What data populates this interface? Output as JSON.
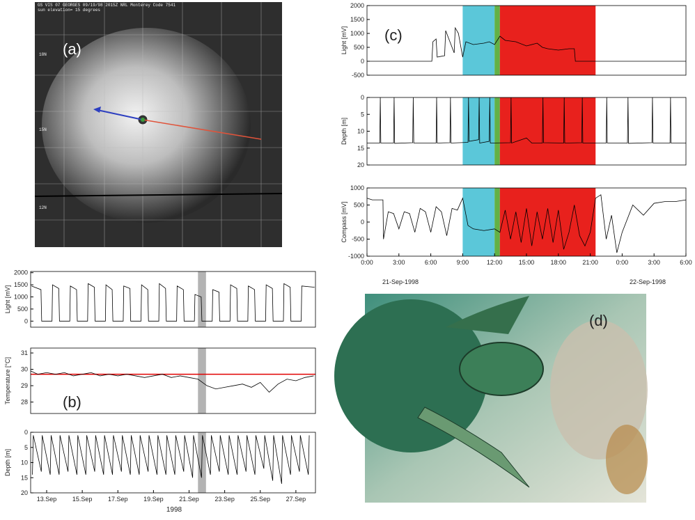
{
  "chart_data": [
    {
      "type": "line",
      "ylabel": "Light [mV]",
      "xlim": [
        12.1,
        28.1
      ],
      "ylim": [
        -250,
        2050
      ],
      "yticks": [
        0,
        500,
        1000,
        1500,
        2000
      ],
      "spans": [
        {
          "x": [
            21.5,
            21.95
          ],
          "color": "#b3b3b3"
        }
      ],
      "x": [
        12.15,
        12.68,
        12.72,
        13.3,
        13.33,
        13.68,
        13.72,
        14.3,
        14.33,
        14.68,
        14.72,
        15.3,
        15.33,
        15.68,
        15.72,
        16.3,
        16.33,
        16.68,
        16.72,
        17.3,
        17.33,
        17.68,
        17.72,
        18.3,
        18.33,
        18.68,
        18.72,
        19.3,
        19.33,
        19.68,
        19.72,
        20.3,
        20.33,
        20.68,
        20.72,
        21.3,
        21.33,
        21.68,
        21.72,
        22.3,
        22.33,
        22.68,
        22.72,
        23.3,
        23.33,
        23.68,
        23.72,
        24.3,
        24.33,
        24.68,
        24.72,
        25.3,
        25.33,
        25.68,
        25.72,
        26.3,
        26.33,
        26.68,
        26.72,
        27.3,
        27.33,
        28.05
      ],
      "series": [
        {
          "color": "#000000",
          "values": [
            1450,
            1300,
            0,
            0,
            1500,
            1350,
            0,
            0,
            1450,
            1300,
            0,
            0,
            1550,
            1400,
            0,
            0,
            1500,
            1300,
            0,
            0,
            1450,
            1350,
            0,
            0,
            1500,
            1300,
            0,
            0,
            1550,
            1350,
            0,
            0,
            1450,
            1300,
            0,
            0,
            1100,
            1000,
            0,
            0,
            1300,
            1200,
            0,
            0,
            1500,
            1350,
            0,
            0,
            1450,
            1300,
            0,
            0,
            1500,
            1350,
            0,
            0,
            1550,
            1400,
            0,
            0,
            1450,
            1400
          ]
        }
      ]
    },
    {
      "type": "line",
      "ylabel": "Temperature [°C]",
      "annotation": "(b)",
      "xlim": [
        12.1,
        28.1
      ],
      "ylim": [
        27.3,
        31.3
      ],
      "yticks": [
        28,
        29,
        30,
        31
      ],
      "spans": [
        {
          "x": [
            21.5,
            21.95
          ],
          "color": "#b3b3b3"
        }
      ],
      "hlines": [
        {
          "y": 29.7,
          "color": "#e00000"
        }
      ],
      "x": [
        12.1,
        12.5,
        13,
        13.5,
        14,
        14.5,
        15,
        15.5,
        16,
        16.5,
        17,
        17.5,
        18,
        18.5,
        19,
        19.5,
        20,
        20.5,
        21,
        21.5,
        22,
        22.5,
        23,
        23.5,
        24,
        24.5,
        25,
        25.5,
        26,
        26.5,
        27,
        27.5,
        28
      ],
      "series": [
        {
          "color": "#000000",
          "values": [
            29.9,
            29.7,
            29.8,
            29.7,
            29.8,
            29.6,
            29.7,
            29.8,
            29.6,
            29.7,
            29.6,
            29.7,
            29.6,
            29.5,
            29.6,
            29.7,
            29.5,
            29.6,
            29.5,
            29.4,
            29.0,
            28.8,
            28.9,
            29.0,
            29.1,
            28.9,
            29.2,
            28.6,
            29.1,
            29.4,
            29.3,
            29.5,
            29.6
          ]
        }
      ]
    },
    {
      "type": "line",
      "ylabel": "Depth [m]",
      "xlabel": "1998",
      "xlim": [
        12.1,
        28.1
      ],
      "ylim": [
        20,
        0
      ],
      "yticks": [
        0,
        5,
        10,
        15,
        20
      ],
      "xticks": [
        {
          "value": 13,
          "label": "13.Sep"
        },
        {
          "value": 15,
          "label": "15.Sep"
        },
        {
          "value": 17,
          "label": "17.Sep"
        },
        {
          "value": 19,
          "label": "19.Sep"
        },
        {
          "value": 21,
          "label": "21.Sep"
        },
        {
          "value": 23,
          "label": "23.Sep"
        },
        {
          "value": 25,
          "label": "25.Sep"
        },
        {
          "value": 27,
          "label": "27.Sep"
        }
      ],
      "spans": [
        {
          "x": [
            21.5,
            21.95
          ],
          "color": "#b3b3b3"
        }
      ],
      "x": [
        12.2,
        12.25,
        12.7,
        12.75,
        13.2,
        13.25,
        13.7,
        13.75,
        14.2,
        14.25,
        14.7,
        14.75,
        15.2,
        15.25,
        15.7,
        15.75,
        16.2,
        16.25,
        16.7,
        16.75,
        17.2,
        17.25,
        17.7,
        17.75,
        18.2,
        18.25,
        18.7,
        18.75,
        19.2,
        19.25,
        19.7,
        19.75,
        20.2,
        20.25,
        20.7,
        20.75,
        21.2,
        21.25,
        21.7,
        21.75,
        22.2,
        22.25,
        22.7,
        22.75,
        23.2,
        23.25,
        23.7,
        23.75,
        24.2,
        24.25,
        24.7,
        24.75,
        25.2,
        25.25,
        25.7,
        25.75,
        26.2,
        26.25,
        26.7,
        26.75,
        27.2,
        27.25,
        27.7,
        27.75
      ],
      "series": [
        {
          "color": "#000000",
          "values": [
            14,
            1,
            13,
            1,
            14,
            1,
            14,
            1,
            13,
            1,
            14,
            1,
            14,
            1,
            13,
            1,
            14,
            1,
            14,
            1,
            13,
            1,
            14,
            1,
            14,
            1,
            13,
            1,
            14,
            1,
            14,
            1,
            14,
            1,
            13,
            1,
            15,
            1,
            15,
            1,
            14,
            1,
            13,
            1,
            14,
            1,
            14,
            1,
            13,
            1,
            14,
            1,
            12,
            1,
            16,
            1,
            17,
            1,
            14,
            1,
            13,
            1,
            14,
            1
          ]
        }
      ]
    },
    {
      "type": "line",
      "ylabel": "Light [mV]",
      "annotation": "(c)",
      "xlim": [
        0,
        30
      ],
      "ylim": [
        -500,
        2000
      ],
      "yticks": [
        -500,
        0,
        500,
        1000,
        1500,
        2000
      ],
      "spans": [
        {
          "x": [
            9,
            12
          ],
          "color": "#5bc7d9"
        },
        {
          "x": [
            12,
            12.5
          ],
          "color": "#62b146"
        },
        {
          "x": [
            12.5,
            21.5
          ],
          "color": "#e8211d"
        }
      ],
      "x": [
        0,
        6.1,
        6.2,
        6.5,
        6.6,
        7.3,
        7.4,
        8.2,
        8.3,
        8.6,
        9.0,
        9.3,
        10,
        11,
        11.5,
        12,
        12.5,
        13,
        14,
        15,
        16,
        16.5,
        17,
        18,
        19,
        19.5,
        19.6,
        30
      ],
      "series": [
        {
          "color": "#000000",
          "values": [
            0,
            0,
            700,
            800,
            150,
            200,
            1100,
            300,
            1200,
            1000,
            150,
            700,
            600,
            650,
            700,
            600,
            900,
            750,
            700,
            550,
            650,
            500,
            450,
            400,
            450,
            450,
            0,
            0
          ]
        }
      ]
    },
    {
      "type": "line",
      "ylabel": "Depth [m]",
      "xlim": [
        0,
        30
      ],
      "ylim": [
        20,
        0
      ],
      "yticks": [
        0,
        5,
        10,
        15,
        20
      ],
      "spans": [
        {
          "x": [
            9,
            12
          ],
          "color": "#5bc7d9"
        },
        {
          "x": [
            12,
            12.5
          ],
          "color": "#62b146"
        },
        {
          "x": [
            12.5,
            21.5
          ],
          "color": "#e8211d"
        }
      ],
      "x": [
        0,
        1.2,
        1.25,
        1.3,
        2.5,
        2.55,
        2.6,
        4.3,
        4.35,
        4.4,
        6.5,
        6.55,
        6.6,
        7.8,
        7.85,
        7.9,
        9.5,
        9.55,
        9.6,
        10.5,
        10.55,
        10.6,
        11.5,
        11.55,
        11.6,
        13.5,
        13.55,
        13.6,
        15,
        15.5,
        16.5,
        16.55,
        16.6,
        18.5,
        18.55,
        18.6,
        20.2,
        20.25,
        20.3,
        22.5,
        22.55,
        22.6,
        24.5,
        24.55,
        24.6,
        26.8,
        26.85,
        26.9,
        28.5,
        28.55,
        28.6,
        30
      ],
      "series": [
        {
          "color": "#000000",
          "values": [
            13.5,
            13.5,
            0,
            13.5,
            13.5,
            0,
            13.6,
            13.4,
            0,
            13.5,
            13.5,
            0,
            13.5,
            13.4,
            0,
            13.5,
            13.3,
            0,
            13,
            12.5,
            0,
            13.5,
            13,
            0,
            13.5,
            13.4,
            0,
            13.5,
            12,
            13.5,
            13.5,
            0,
            13.4,
            13.5,
            0,
            13.5,
            13.4,
            0,
            13.5,
            13.5,
            0,
            13.5,
            13.5,
            0,
            13.6,
            13.4,
            0,
            13.5,
            13.5,
            0,
            13.5,
            13.5
          ]
        }
      ]
    },
    {
      "type": "line",
      "ylabel": "Compass [mV]",
      "xlim": [
        0,
        30
      ],
      "ylim": [
        -1000,
        1000
      ],
      "yticks": [
        -1000,
        -500,
        0,
        500,
        1000
      ],
      "xticks": [
        {
          "value": 0,
          "label": "0:00"
        },
        {
          "value": 3,
          "label": "3:00"
        },
        {
          "value": 6,
          "label": "6:00"
        },
        {
          "value": 9,
          "label": "9:00"
        },
        {
          "value": 12,
          "label": "12:00"
        },
        {
          "value": 15,
          "label": "15:00"
        },
        {
          "value": 18,
          "label": "18:00"
        },
        {
          "value": 21,
          "label": "21:00"
        },
        {
          "value": 24,
          "label": "0:00"
        },
        {
          "value": 27,
          "label": "3:00"
        },
        {
          "value": 30,
          "label": "6:00"
        }
      ],
      "date_labels": [
        "21-Sep-1998",
        "22-Sep-1998"
      ],
      "spans": [
        {
          "x": [
            9,
            12
          ],
          "color": "#5bc7d9"
        },
        {
          "x": [
            12,
            12.5
          ],
          "color": "#62b146"
        },
        {
          "x": [
            12.5,
            21.5
          ],
          "color": "#e8211d"
        }
      ],
      "x": [
        0,
        0.5,
        1.5,
        1.55,
        2,
        2.5,
        3,
        3.5,
        4,
        4.5,
        5,
        5.5,
        6,
        6.5,
        7,
        7.5,
        8,
        8.5,
        9,
        9.5,
        10,
        11,
        12,
        12.5,
        13,
        13.5,
        14,
        14.5,
        15,
        15.5,
        16,
        16.5,
        17,
        17.5,
        18,
        18.5,
        19,
        19.5,
        20,
        20.5,
        21,
        21.5,
        22,
        22.5,
        23,
        23.5,
        24,
        25,
        26,
        27,
        28,
        29,
        30
      ],
      "series": [
        {
          "color": "#000000",
          "values": [
            700,
            650,
            650,
            -500,
            300,
            250,
            -200,
            300,
            250,
            -300,
            400,
            300,
            -300,
            450,
            300,
            -400,
            400,
            350,
            700,
            -100,
            -200,
            -250,
            -200,
            -300,
            350,
            -500,
            300,
            -600,
            400,
            -700,
            300,
            -500,
            400,
            -600,
            350,
            -800,
            -300,
            500,
            -400,
            -700,
            -300,
            700,
            800,
            -500,
            200,
            -900,
            -300,
            500,
            200,
            550,
            600,
            600,
            650
          ]
        }
      ]
    }
  ],
  "figure": {
    "panel_a": {
      "label": "(a)",
      "header": "GS VIS 07 GEORGES 09/19/98 2015Z NRL Monterey Code 7541",
      "subheader": "sun elevation= 15 degrees",
      "lat_labels": [
        "18N",
        "15N",
        "12N"
      ]
    },
    "panel_d": {
      "label": "(d)"
    }
  }
}
